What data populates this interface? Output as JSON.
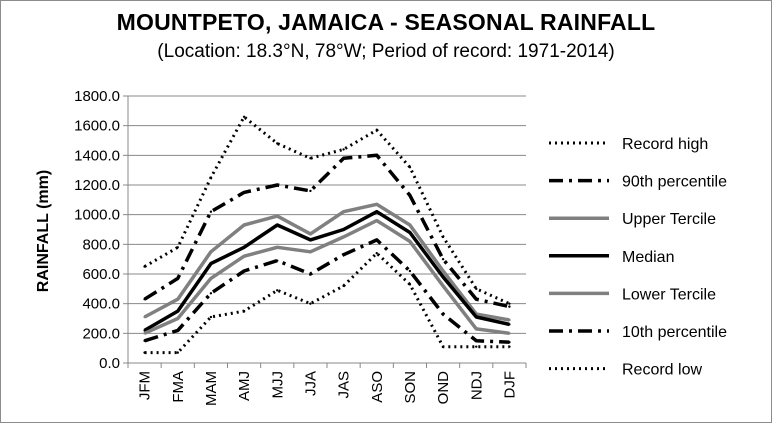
{
  "chart_data": {
    "type": "line",
    "title": "MOUNTPETO, JAMAICA - SEASONAL RAINFALL",
    "subtitle": "(Location: 18.3°N, 78°W; Period of record: 1971-2014)",
    "xlabel": "",
    "ylabel": "RAINFALL (mm)",
    "ylim": [
      0,
      1800
    ],
    "yticks": [
      "0.0",
      "200.0",
      "400.0",
      "600.0",
      "800.0",
      "1000.0",
      "1200.0",
      "1400.0",
      "1600.0",
      "1800.0"
    ],
    "grid": "horizontal",
    "legend_position": "right",
    "categories": [
      "JFM",
      "FMA",
      "MAM",
      "AMJ",
      "MJJ",
      "JJA",
      "JAS",
      "ASO",
      "SON",
      "OND",
      "NDJ",
      "DJF"
    ],
    "series": [
      {
        "name": "Record high",
        "style": "dotted",
        "color": "#000000",
        "values": [
          650,
          780,
          1250,
          1660,
          1480,
          1380,
          1440,
          1570,
          1320,
          850,
          500,
          400
        ]
      },
      {
        "name": "90th percentile",
        "style": "dashdot",
        "color": "#000000",
        "values": [
          430,
          570,
          1020,
          1150,
          1200,
          1160,
          1380,
          1400,
          1130,
          700,
          430,
          380
        ]
      },
      {
        "name": "Upper Tercile",
        "style": "solid",
        "color": "#808080",
        "values": [
          310,
          430,
          750,
          930,
          990,
          870,
          1020,
          1070,
          930,
          620,
          330,
          290
        ]
      },
      {
        "name": "Median",
        "style": "solid",
        "color": "#000000",
        "values": [
          220,
          350,
          670,
          780,
          930,
          830,
          900,
          1020,
          880,
          580,
          310,
          260
        ]
      },
      {
        "name": "Lower Tercile",
        "style": "solid",
        "color": "#808080",
        "values": [
          200,
          300,
          570,
          720,
          780,
          750,
          850,
          960,
          820,
          520,
          230,
          200
        ]
      },
      {
        "name": "10th percentile",
        "style": "dashdot",
        "color": "#000000",
        "values": [
          150,
          220,
          470,
          620,
          690,
          600,
          730,
          830,
          620,
          330,
          150,
          140
        ]
      },
      {
        "name": "Record low",
        "style": "dotted",
        "color": "#000000",
        "values": [
          70,
          70,
          310,
          350,
          490,
          400,
          520,
          740,
          530,
          110,
          110,
          110
        ]
      }
    ]
  }
}
